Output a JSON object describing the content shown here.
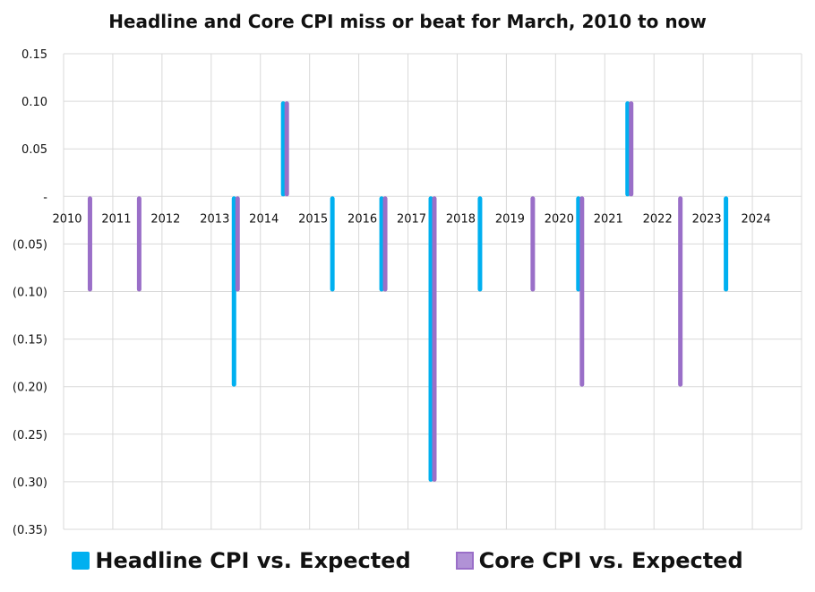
{
  "chart_data": {
    "type": "bar",
    "title": "Headline and Core CPI miss or beat for March, 2010 to now",
    "categories": [
      "2010",
      "2011",
      "2012",
      "2013",
      "2014",
      "2015",
      "2016",
      "2017",
      "2018",
      "2019",
      "2020",
      "2021",
      "2022",
      "2023",
      "2024"
    ],
    "y_tick_labels": [
      "0.15",
      "0.10",
      "0.05",
      "-",
      "(0.05)",
      "(0.10)",
      "(0.15)",
      "(0.20)",
      "(0.25)",
      "(0.30)",
      "(0.35)"
    ],
    "ylim": [
      -0.35,
      0.15
    ],
    "grid": true,
    "legend_position": "bottom",
    "series": [
      {
        "name": "Headline CPI vs. Expected",
        "color": "#00b0f0",
        "values": [
          0,
          0,
          0,
          -0.2,
          0.1,
          -0.1,
          -0.1,
          -0.3,
          -0.1,
          0,
          -0.1,
          0.1,
          0,
          -0.1,
          null
        ]
      },
      {
        "name": "Core CPI vs. Expected",
        "color": "#9a6fc8",
        "values": [
          -0.1,
          -0.1,
          0,
          -0.1,
          0.1,
          0,
          -0.1,
          -0.3,
          0,
          -0.1,
          -0.2,
          0.1,
          -0.2,
          0,
          null
        ]
      }
    ]
  }
}
